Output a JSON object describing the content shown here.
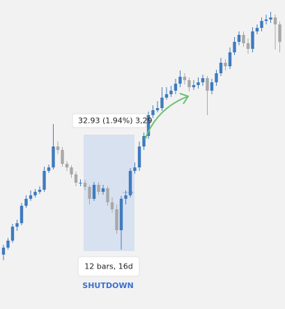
{
  "chart_data": {
    "type": "candlestick",
    "measure_label": "32.93 (1.94%) 3,29",
    "range_label": "12 bars, 16d",
    "annotation": "SHUTDOWN",
    "up_color": "#3f7bbf",
    "down_color": "#a8a8a8",
    "ylim": [
      0,
      443
    ],
    "candles": [
      [
        78,
        92,
        70,
        88
      ],
      [
        88,
        102,
        85,
        98
      ],
      [
        98,
        122,
        95,
        118
      ],
      [
        118,
        128,
        112,
        123
      ],
      [
        123,
        152,
        120,
        148
      ],
      [
        148,
        163,
        145,
        158
      ],
      [
        158,
        170,
        155,
        163
      ],
      [
        163,
        172,
        160,
        168
      ],
      [
        168,
        176,
        165,
        171
      ],
      [
        171,
        204,
        168,
        198
      ],
      [
        198,
        207,
        195,
        203
      ],
      [
        203,
        265,
        200,
        233
      ],
      [
        233,
        240,
        222,
        228
      ],
      [
        228,
        232,
        204,
        208
      ],
      [
        208,
        212,
        198,
        203
      ],
      [
        203,
        206,
        188,
        193
      ],
      [
        193,
        197,
        176,
        181
      ],
      [
        181,
        186,
        176,
        181
      ],
      [
        181,
        185,
        170,
        175
      ],
      [
        175,
        178,
        150,
        158
      ],
      [
        158,
        182,
        155,
        178
      ],
      [
        178,
        182,
        164,
        168
      ],
      [
        168,
        178,
        164,
        173
      ],
      [
        173,
        176,
        148,
        153
      ],
      [
        153,
        160,
        138,
        143
      ],
      [
        143,
        150,
        108,
        113
      ],
      [
        113,
        162,
        85,
        158
      ],
      [
        158,
        170,
        150,
        163
      ],
      [
        163,
        202,
        160,
        198
      ],
      [
        198,
        210,
        194,
        203
      ],
      [
        203,
        240,
        198,
        233
      ],
      [
        233,
        253,
        228,
        248
      ],
      [
        248,
        283,
        244,
        278
      ],
      [
        278,
        292,
        274,
        285
      ],
      [
        285,
        298,
        282,
        288
      ],
      [
        288,
        318,
        284,
        303
      ],
      [
        303,
        318,
        300,
        308
      ],
      [
        308,
        320,
        304,
        313
      ],
      [
        313,
        330,
        308,
        323
      ],
      [
        323,
        342,
        318,
        333
      ],
      [
        333,
        338,
        322,
        328
      ],
      [
        328,
        332,
        312,
        318
      ],
      [
        318,
        328,
        314,
        321
      ],
      [
        321,
        332,
        316,
        325
      ],
      [
        325,
        336,
        320,
        331
      ],
      [
        331,
        334,
        278,
        313
      ],
      [
        313,
        330,
        308,
        325
      ],
      [
        325,
        343,
        320,
        338
      ],
      [
        338,
        360,
        334,
        353
      ],
      [
        353,
        358,
        342,
        348
      ],
      [
        348,
        375,
        344,
        368
      ],
      [
        368,
        390,
        364,
        383
      ],
      [
        383,
        398,
        378,
        393
      ],
      [
        393,
        398,
        376,
        381
      ],
      [
        381,
        388,
        366,
        373
      ],
      [
        373,
        404,
        368,
        398
      ],
      [
        398,
        408,
        394,
        403
      ],
      [
        403,
        418,
        398,
        413
      ],
      [
        413,
        422,
        408,
        415
      ],
      [
        415,
        426,
        410,
        418
      ],
      [
        418,
        422,
        372,
        408
      ],
      [
        408,
        412,
        368,
        383
      ]
    ]
  }
}
